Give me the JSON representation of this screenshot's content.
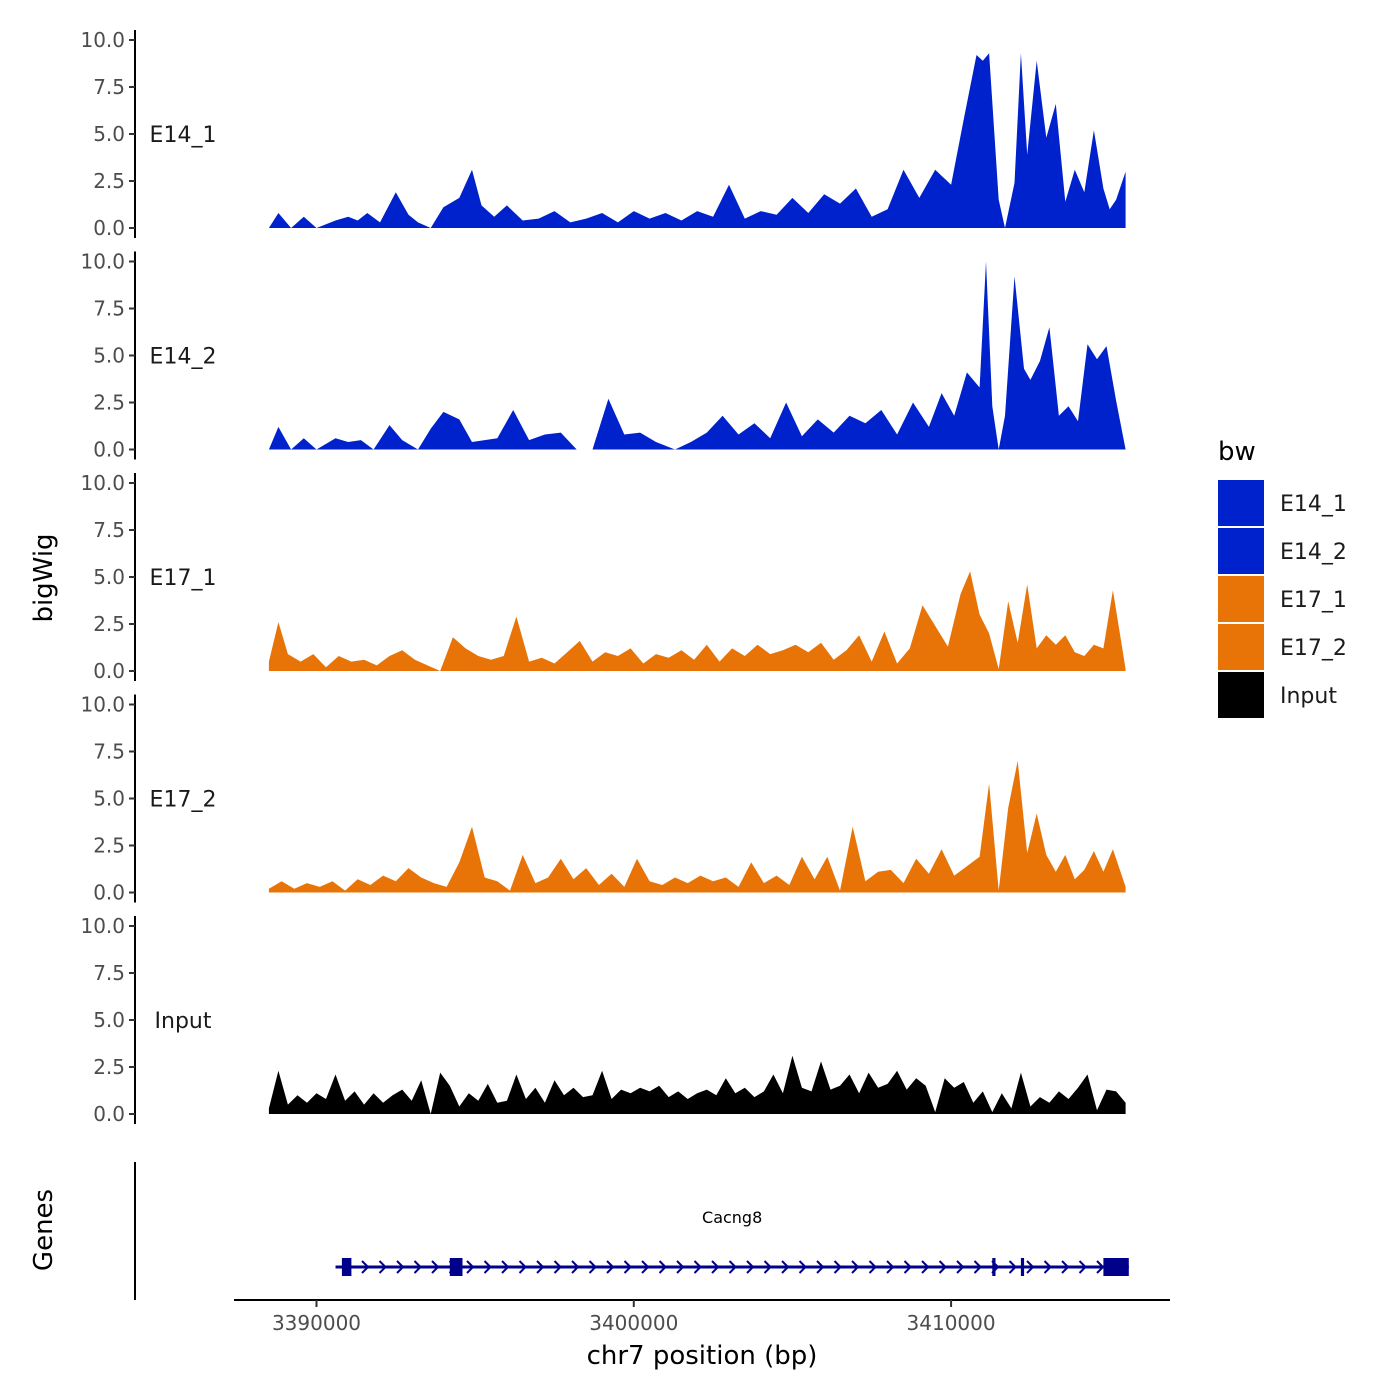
{
  "chart_data": {
    "type": "area",
    "title": "",
    "xlabel": "chr7 position (bp)",
    "ylabel": "bigWig",
    "genes_panel_label": "Genes",
    "xlim": [
      3387400,
      3416900
    ],
    "ylim": [
      0,
      10
    ],
    "x_ticks": [
      3390000,
      3400000,
      3410000
    ],
    "x_tick_labels": [
      "3390000",
      "3400000",
      "3410000"
    ],
    "y_ticks": [
      0,
      2.5,
      5,
      7.5,
      10
    ],
    "y_tick_labels": [
      "0.0",
      "2.5",
      "5.0",
      "7.5",
      "10.0"
    ],
    "legend": {
      "title": "bw",
      "entries": [
        {
          "label": "E14_1",
          "color": "#0022cc"
        },
        {
          "label": "E14_2",
          "color": "#0022cc"
        },
        {
          "label": "E17_1",
          "color": "#e87407"
        },
        {
          "label": "E17_2",
          "color": "#e87407"
        },
        {
          "label": "Input",
          "color": "#000000"
        }
      ]
    },
    "series": [
      {
        "name": "E14_1",
        "color": "#0022cc",
        "x": [
          3388500,
          3388800,
          3389200,
          3389600,
          3390000,
          3390600,
          3391000,
          3391300,
          3391600,
          3392000,
          3392500,
          3392900,
          3393200,
          3393600,
          3394000,
          3394500,
          3394900,
          3395200,
          3395600,
          3396000,
          3396500,
          3397000,
          3397500,
          3398000,
          3398500,
          3399000,
          3399500,
          3400000,
          3400500,
          3401000,
          3401500,
          3402000,
          3402500,
          3403000,
          3403500,
          3404000,
          3404500,
          3405000,
          3405500,
          3406000,
          3406500,
          3407000,
          3407500,
          3408000,
          3408500,
          3409000,
          3409500,
          3410000,
          3410400,
          3410800,
          3411000,
          3411200,
          3411500,
          3411700,
          3412000,
          3412200,
          3412400,
          3412700,
          3413000,
          3413300,
          3413600,
          3413900,
          3414200,
          3414500,
          3414800,
          3415000,
          3415200,
          3415500
        ],
        "values": [
          0,
          0.8,
          0,
          0.6,
          0,
          0.4,
          0.6,
          0.4,
          0.8,
          0.3,
          1.9,
          0.7,
          0.3,
          0,
          1.1,
          1.6,
          3.1,
          1.2,
          0.6,
          1.2,
          0.4,
          0.5,
          0.9,
          0.3,
          0.5,
          0.8,
          0.3,
          0.9,
          0.5,
          0.8,
          0.4,
          0.9,
          0.6,
          2.3,
          0.5,
          0.9,
          0.7,
          1.6,
          0.8,
          1.8,
          1.3,
          2.1,
          0.6,
          1.0,
          3.1,
          1.6,
          3.1,
          2.3,
          5.8,
          9.2,
          8.9,
          9.3,
          1.5,
          0,
          2.4,
          9.3,
          3.9,
          8.9,
          4.8,
          6.6,
          1.4,
          3.1,
          1.9,
          5.2,
          2.1,
          1.0,
          1.5,
          3.0
        ]
      },
      {
        "name": "E14_2",
        "color": "#0022cc",
        "x": [
          3388500,
          3388800,
          3389200,
          3389600,
          3390000,
          3390600,
          3391000,
          3391400,
          3391800,
          3392300,
          3392700,
          3393200,
          3393600,
          3394000,
          3394500,
          3394900,
          3395300,
          3395700,
          3396200,
          3396700,
          3397200,
          3397700,
          3398200,
          3398700,
          3399200,
          3399700,
          3400200,
          3400700,
          3401300,
          3401800,
          3402300,
          3402800,
          3403300,
          3403800,
          3404300,
          3404800,
          3405300,
          3405800,
          3406300,
          3406800,
          3407300,
          3407800,
          3408300,
          3408800,
          3409300,
          3409700,
          3410100,
          3410500,
          3410900,
          3411100,
          3411300,
          3411500,
          3411700,
          3412000,
          3412300,
          3412500,
          3412800,
          3413100,
          3413400,
          3413700,
          3414000,
          3414300,
          3414600,
          3414900,
          3415200,
          3415500
        ],
        "values": [
          0,
          1.2,
          0,
          0.6,
          0,
          0.6,
          0.4,
          0.5,
          0,
          1.3,
          0.5,
          0,
          1.1,
          2.0,
          1.6,
          0.4,
          0.5,
          0.6,
          2.1,
          0.5,
          0.8,
          0.9,
          0,
          0,
          2.7,
          0.8,
          0.9,
          0.4,
          0,
          0.4,
          0.9,
          1.8,
          0.8,
          1.4,
          0.6,
          2.5,
          0.7,
          1.6,
          0.9,
          1.8,
          1.4,
          2.1,
          0.8,
          2.5,
          1.2,
          3.0,
          1.8,
          4.1,
          3.3,
          10.0,
          2.3,
          0,
          1.8,
          9.2,
          4.3,
          3.7,
          4.7,
          6.5,
          1.8,
          2.3,
          1.5,
          5.6,
          4.8,
          5.5,
          2.6,
          0
        ]
      },
      {
        "name": "E17_1",
        "color": "#e87407",
        "x": [
          3388500,
          3388800,
          3389100,
          3389500,
          3389900,
          3390300,
          3390700,
          3391100,
          3391500,
          3391900,
          3392300,
          3392700,
          3393100,
          3393500,
          3393900,
          3394300,
          3394700,
          3395100,
          3395500,
          3395900,
          3396300,
          3396700,
          3397100,
          3397500,
          3397900,
          3398300,
          3398700,
          3399100,
          3399500,
          3399900,
          3400300,
          3400700,
          3401100,
          3401500,
          3401900,
          3402300,
          3402700,
          3403100,
          3403500,
          3403900,
          3404300,
          3404700,
          3405100,
          3405500,
          3405900,
          3406300,
          3406700,
          3407100,
          3407500,
          3407900,
          3408300,
          3408700,
          3409100,
          3409500,
          3409900,
          3410300,
          3410600,
          3410900,
          3411200,
          3411500,
          3411800,
          3412100,
          3412400,
          3412700,
          3413000,
          3413300,
          3413600,
          3413900,
          3414200,
          3414500,
          3414800,
          3415100,
          3415500
        ],
        "values": [
          0.5,
          2.6,
          0.9,
          0.5,
          0.9,
          0.2,
          0.8,
          0.5,
          0.6,
          0.3,
          0.8,
          1.1,
          0.6,
          0.3,
          0,
          1.8,
          1.2,
          0.8,
          0.6,
          0.8,
          2.9,
          0.5,
          0.7,
          0.4,
          1.0,
          1.6,
          0.5,
          1.0,
          0.8,
          1.2,
          0.4,
          0.9,
          0.7,
          1.1,
          0.6,
          1.4,
          0.5,
          1.2,
          0.8,
          1.4,
          0.9,
          1.1,
          1.4,
          1.0,
          1.5,
          0.6,
          1.1,
          1.9,
          0.5,
          2.1,
          0.4,
          1.2,
          3.5,
          2.4,
          1.3,
          4.1,
          5.3,
          3.0,
          2.0,
          0.1,
          3.7,
          1.5,
          4.6,
          1.2,
          1.9,
          1.4,
          1.9,
          1.0,
          0.8,
          1.4,
          1.2,
          4.3,
          0.1
        ]
      },
      {
        "name": "E17_2",
        "color": "#e87407",
        "x": [
          3388500,
          3388900,
          3389300,
          3389700,
          3390100,
          3390500,
          3390900,
          3391300,
          3391700,
          3392100,
          3392500,
          3392900,
          3393300,
          3393700,
          3394100,
          3394500,
          3394900,
          3395300,
          3395700,
          3396100,
          3396500,
          3396900,
          3397300,
          3397700,
          3398100,
          3398500,
          3398900,
          3399300,
          3399700,
          3400100,
          3400500,
          3400900,
          3401300,
          3401700,
          3402100,
          3402500,
          3402900,
          3403300,
          3403700,
          3404100,
          3404500,
          3404900,
          3405300,
          3405700,
          3406100,
          3406500,
          3406900,
          3407300,
          3407700,
          3408100,
          3408500,
          3408900,
          3409300,
          3409700,
          3410100,
          3410500,
          3410900,
          3411200,
          3411500,
          3411800,
          3412100,
          3412400,
          3412700,
          3413000,
          3413300,
          3413600,
          3413900,
          3414200,
          3414500,
          3414800,
          3415100,
          3415500
        ],
        "values": [
          0.2,
          0.6,
          0.2,
          0.5,
          0.3,
          0.6,
          0.1,
          0.7,
          0.4,
          0.9,
          0.6,
          1.3,
          0.8,
          0.5,
          0.3,
          1.6,
          3.5,
          0.8,
          0.6,
          0.1,
          2.0,
          0.5,
          0.8,
          1.8,
          0.7,
          1.3,
          0.4,
          1.0,
          0.3,
          1.8,
          0.6,
          0.4,
          0.8,
          0.5,
          0.9,
          0.6,
          0.8,
          0.3,
          1.6,
          0.5,
          0.9,
          0.4,
          1.9,
          0.7,
          1.9,
          0.1,
          3.5,
          0.6,
          1.1,
          1.2,
          0.5,
          1.8,
          1.0,
          2.3,
          0.9,
          1.4,
          1.9,
          5.8,
          0.1,
          4.5,
          7.0,
          2.1,
          4.2,
          2.0,
          1.1,
          2.0,
          0.7,
          1.2,
          2.2,
          1.1,
          2.3,
          0.3
        ]
      },
      {
        "name": "Input",
        "color": "#000000",
        "x": [
          3388500,
          3388800,
          3389100,
          3389400,
          3389700,
          3390000,
          3390300,
          3390600,
          3390900,
          3391200,
          3391500,
          3391800,
          3392100,
          3392400,
          3392700,
          3393000,
          3393300,
          3393600,
          3393900,
          3394200,
          3394500,
          3394800,
          3395100,
          3395400,
          3395700,
          3396000,
          3396300,
          3396600,
          3396900,
          3397200,
          3397500,
          3397800,
          3398100,
          3398400,
          3398700,
          3399000,
          3399300,
          3399600,
          3399900,
          3400200,
          3400500,
          3400800,
          3401100,
          3401400,
          3401700,
          3402000,
          3402300,
          3402600,
          3402900,
          3403200,
          3403500,
          3403800,
          3404100,
          3404400,
          3404700,
          3405000,
          3405300,
          3405600,
          3405900,
          3406200,
          3406500,
          3406800,
          3407100,
          3407400,
          3407700,
          3408000,
          3408300,
          3408600,
          3408900,
          3409200,
          3409500,
          3409800,
          3410100,
          3410400,
          3410700,
          3411000,
          3411300,
          3411600,
          3411900,
          3412200,
          3412500,
          3412800,
          3413100,
          3413400,
          3413700,
          3414000,
          3414300,
          3414600,
          3414900,
          3415200,
          3415500
        ],
        "values": [
          0.3,
          2.3,
          0.5,
          1.0,
          0.6,
          1.1,
          0.8,
          2.1,
          0.7,
          1.2,
          0.5,
          1.1,
          0.6,
          1.0,
          1.3,
          0.7,
          1.8,
          0,
          2.2,
          1.5,
          0.4,
          1.1,
          0.7,
          1.6,
          0.6,
          0.7,
          2.1,
          0.8,
          1.4,
          0.6,
          1.8,
          1.0,
          1.4,
          0.9,
          1.0,
          2.3,
          0.8,
          1.3,
          1.1,
          1.4,
          1.2,
          1.5,
          0.9,
          1.2,
          0.8,
          1.1,
          1.3,
          1.0,
          1.9,
          1.1,
          1.4,
          0.9,
          1.2,
          2.1,
          1.1,
          3.1,
          1.4,
          1.2,
          2.8,
          1.3,
          1.5,
          2.1,
          1.1,
          2.2,
          1.4,
          1.6,
          2.3,
          1.3,
          1.9,
          1.5,
          0.1,
          1.9,
          1.4,
          1.7,
          0.6,
          1.2,
          0.1,
          1.1,
          0.3,
          2.2,
          0.4,
          0.9,
          0.6,
          1.2,
          0.8,
          1.4,
          2.1,
          0.2,
          1.3,
          1.2,
          0.6
        ]
      }
    ],
    "genes": [
      {
        "name": "Cacng8",
        "start": 3390600,
        "end": 3415600,
        "strand": "+",
        "color": "#00008b",
        "exons": [
          [
            3390800,
            3391100
          ],
          [
            3394200,
            3394600
          ],
          [
            3411300,
            3411400
          ],
          [
            3412200,
            3412300
          ],
          [
            3414800,
            3415600
          ]
        ]
      }
    ]
  }
}
